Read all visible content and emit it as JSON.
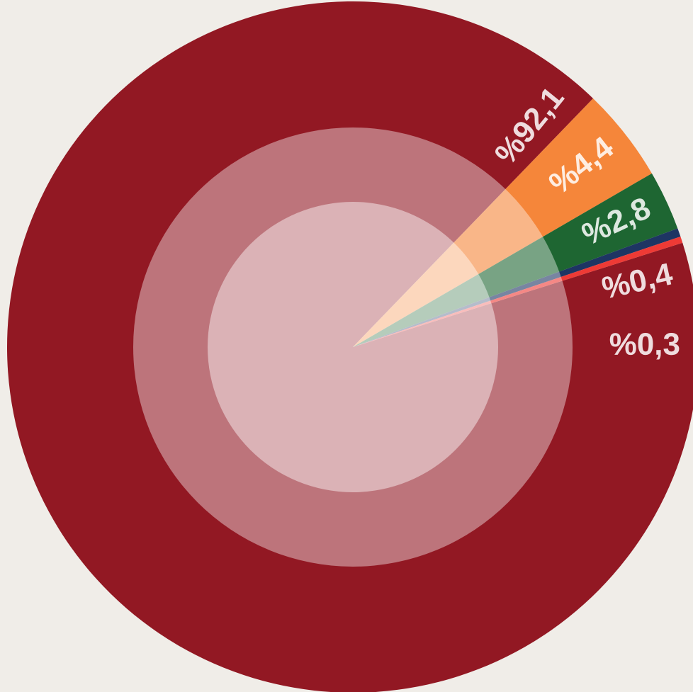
{
  "chart_data": {
    "type": "pie",
    "categories": [
      null,
      null,
      null,
      null,
      null
    ],
    "values": [
      92.1,
      4.4,
      2.8,
      0.4,
      0.3
    ],
    "value_labels": [
      "%92,1",
      "%4,4",
      "%2,8",
      "%0,4",
      "%0,3"
    ],
    "colors": [
      "#921823",
      "#f5863a",
      "#1e6632",
      "#1e3563",
      "#ee3a35"
    ]
  }
}
